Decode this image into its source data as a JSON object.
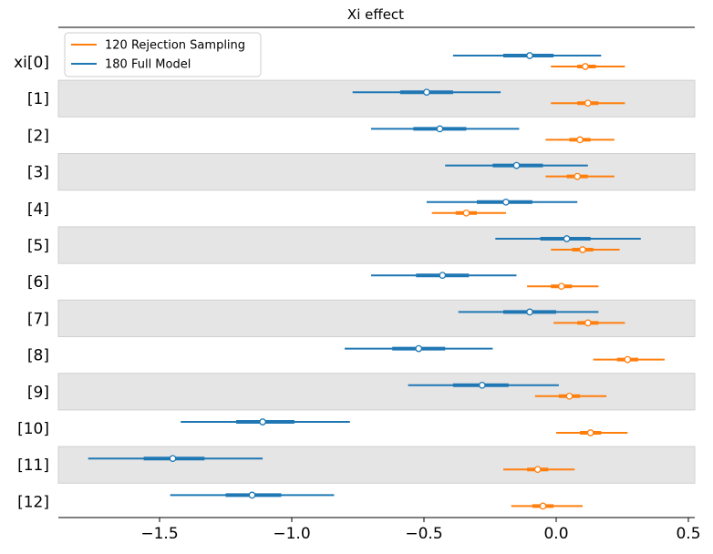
{
  "chart_data": {
    "type": "forest",
    "title": "Xi effect",
    "y_labels": [
      "xi[0]",
      "[1]",
      "[2]",
      "[3]",
      "[4]",
      "[5]",
      "[6]",
      "[7]",
      "[8]",
      "[9]",
      "[10]",
      "[11]",
      "[12]"
    ],
    "x_ticks": [
      -1.5,
      -1.0,
      -0.5,
      0.0,
      0.5
    ],
    "x_tick_labels": [
      "−1.5",
      "−1.0",
      "−0.5",
      "0.0",
      "0.5"
    ],
    "xlim": [
      -1.9,
      0.52
    ],
    "grid": false,
    "legend_position": "top-left",
    "colors": {
      "full_model": "#1f77b4",
      "rejection_sampling": "#ff7f0e",
      "band": "#e5e5e5"
    },
    "series": [
      {
        "name": "120 Rejection Sampling",
        "key": "rejection_sampling",
        "points": [
          {
            "mean": 0.11,
            "lo94": -0.02,
            "hi94": 0.26,
            "lo50": 0.08,
            "hi50": 0.15
          },
          {
            "mean": 0.12,
            "lo94": -0.02,
            "hi94": 0.26,
            "lo50": 0.08,
            "hi50": 0.16
          },
          {
            "mean": 0.09,
            "lo94": -0.04,
            "hi94": 0.22,
            "lo50": 0.05,
            "hi50": 0.13
          },
          {
            "mean": 0.08,
            "lo94": -0.04,
            "hi94": 0.22,
            "lo50": 0.04,
            "hi50": 0.12
          },
          {
            "mean": -0.34,
            "lo94": -0.47,
            "hi94": -0.19,
            "lo50": -0.38,
            "hi50": -0.3
          },
          {
            "mean": 0.1,
            "lo94": -0.02,
            "hi94": 0.24,
            "lo50": 0.06,
            "hi50": 0.14
          },
          {
            "mean": 0.02,
            "lo94": -0.11,
            "hi94": 0.16,
            "lo50": -0.02,
            "hi50": 0.06
          },
          {
            "mean": 0.12,
            "lo94": -0.01,
            "hi94": 0.26,
            "lo50": 0.08,
            "hi50": 0.16
          },
          {
            "mean": 0.27,
            "lo94": 0.14,
            "hi94": 0.41,
            "lo50": 0.23,
            "hi50": 0.31
          },
          {
            "mean": 0.05,
            "lo94": -0.08,
            "hi94": 0.19,
            "lo50": 0.01,
            "hi50": 0.09
          },
          {
            "mean": 0.13,
            "lo94": 0.0,
            "hi94": 0.27,
            "lo50": 0.09,
            "hi50": 0.17
          },
          {
            "mean": -0.07,
            "lo94": -0.2,
            "hi94": 0.07,
            "lo50": -0.11,
            "hi50": -0.03
          },
          {
            "mean": -0.05,
            "lo94": -0.17,
            "hi94": 0.1,
            "lo50": -0.09,
            "hi50": -0.01
          }
        ]
      },
      {
        "name": "180 Full Model",
        "key": "full_model",
        "points": [
          {
            "mean": -0.1,
            "lo94": -0.39,
            "hi94": 0.17,
            "lo50": -0.2,
            "hi50": -0.01
          },
          {
            "mean": -0.49,
            "lo94": -0.77,
            "hi94": -0.21,
            "lo50": -0.59,
            "hi50": -0.39
          },
          {
            "mean": -0.44,
            "lo94": -0.7,
            "hi94": -0.14,
            "lo50": -0.54,
            "hi50": -0.34
          },
          {
            "mean": -0.15,
            "lo94": -0.42,
            "hi94": 0.12,
            "lo50": -0.24,
            "hi50": -0.05
          },
          {
            "mean": -0.19,
            "lo94": -0.49,
            "hi94": 0.08,
            "lo50": -0.3,
            "hi50": -0.09
          },
          {
            "mean": 0.04,
            "lo94": -0.23,
            "hi94": 0.32,
            "lo50": -0.06,
            "hi50": 0.13
          },
          {
            "mean": -0.43,
            "lo94": -0.7,
            "hi94": -0.15,
            "lo50": -0.53,
            "hi50": -0.33
          },
          {
            "mean": -0.1,
            "lo94": -0.37,
            "hi94": 0.16,
            "lo50": -0.2,
            "hi50": 0.0
          },
          {
            "mean": -0.52,
            "lo94": -0.8,
            "hi94": -0.24,
            "lo50": -0.62,
            "hi50": -0.42
          },
          {
            "mean": -0.28,
            "lo94": -0.56,
            "hi94": 0.01,
            "lo50": -0.39,
            "hi50": -0.18
          },
          {
            "mean": -1.11,
            "lo94": -1.42,
            "hi94": -0.78,
            "lo50": -1.21,
            "hi50": -0.99
          },
          {
            "mean": -1.45,
            "lo94": -1.77,
            "hi94": -1.11,
            "lo50": -1.56,
            "hi50": -1.33
          },
          {
            "mean": -1.15,
            "lo94": -1.46,
            "hi94": -0.84,
            "lo50": -1.25,
            "hi50": -1.04
          }
        ]
      }
    ]
  }
}
